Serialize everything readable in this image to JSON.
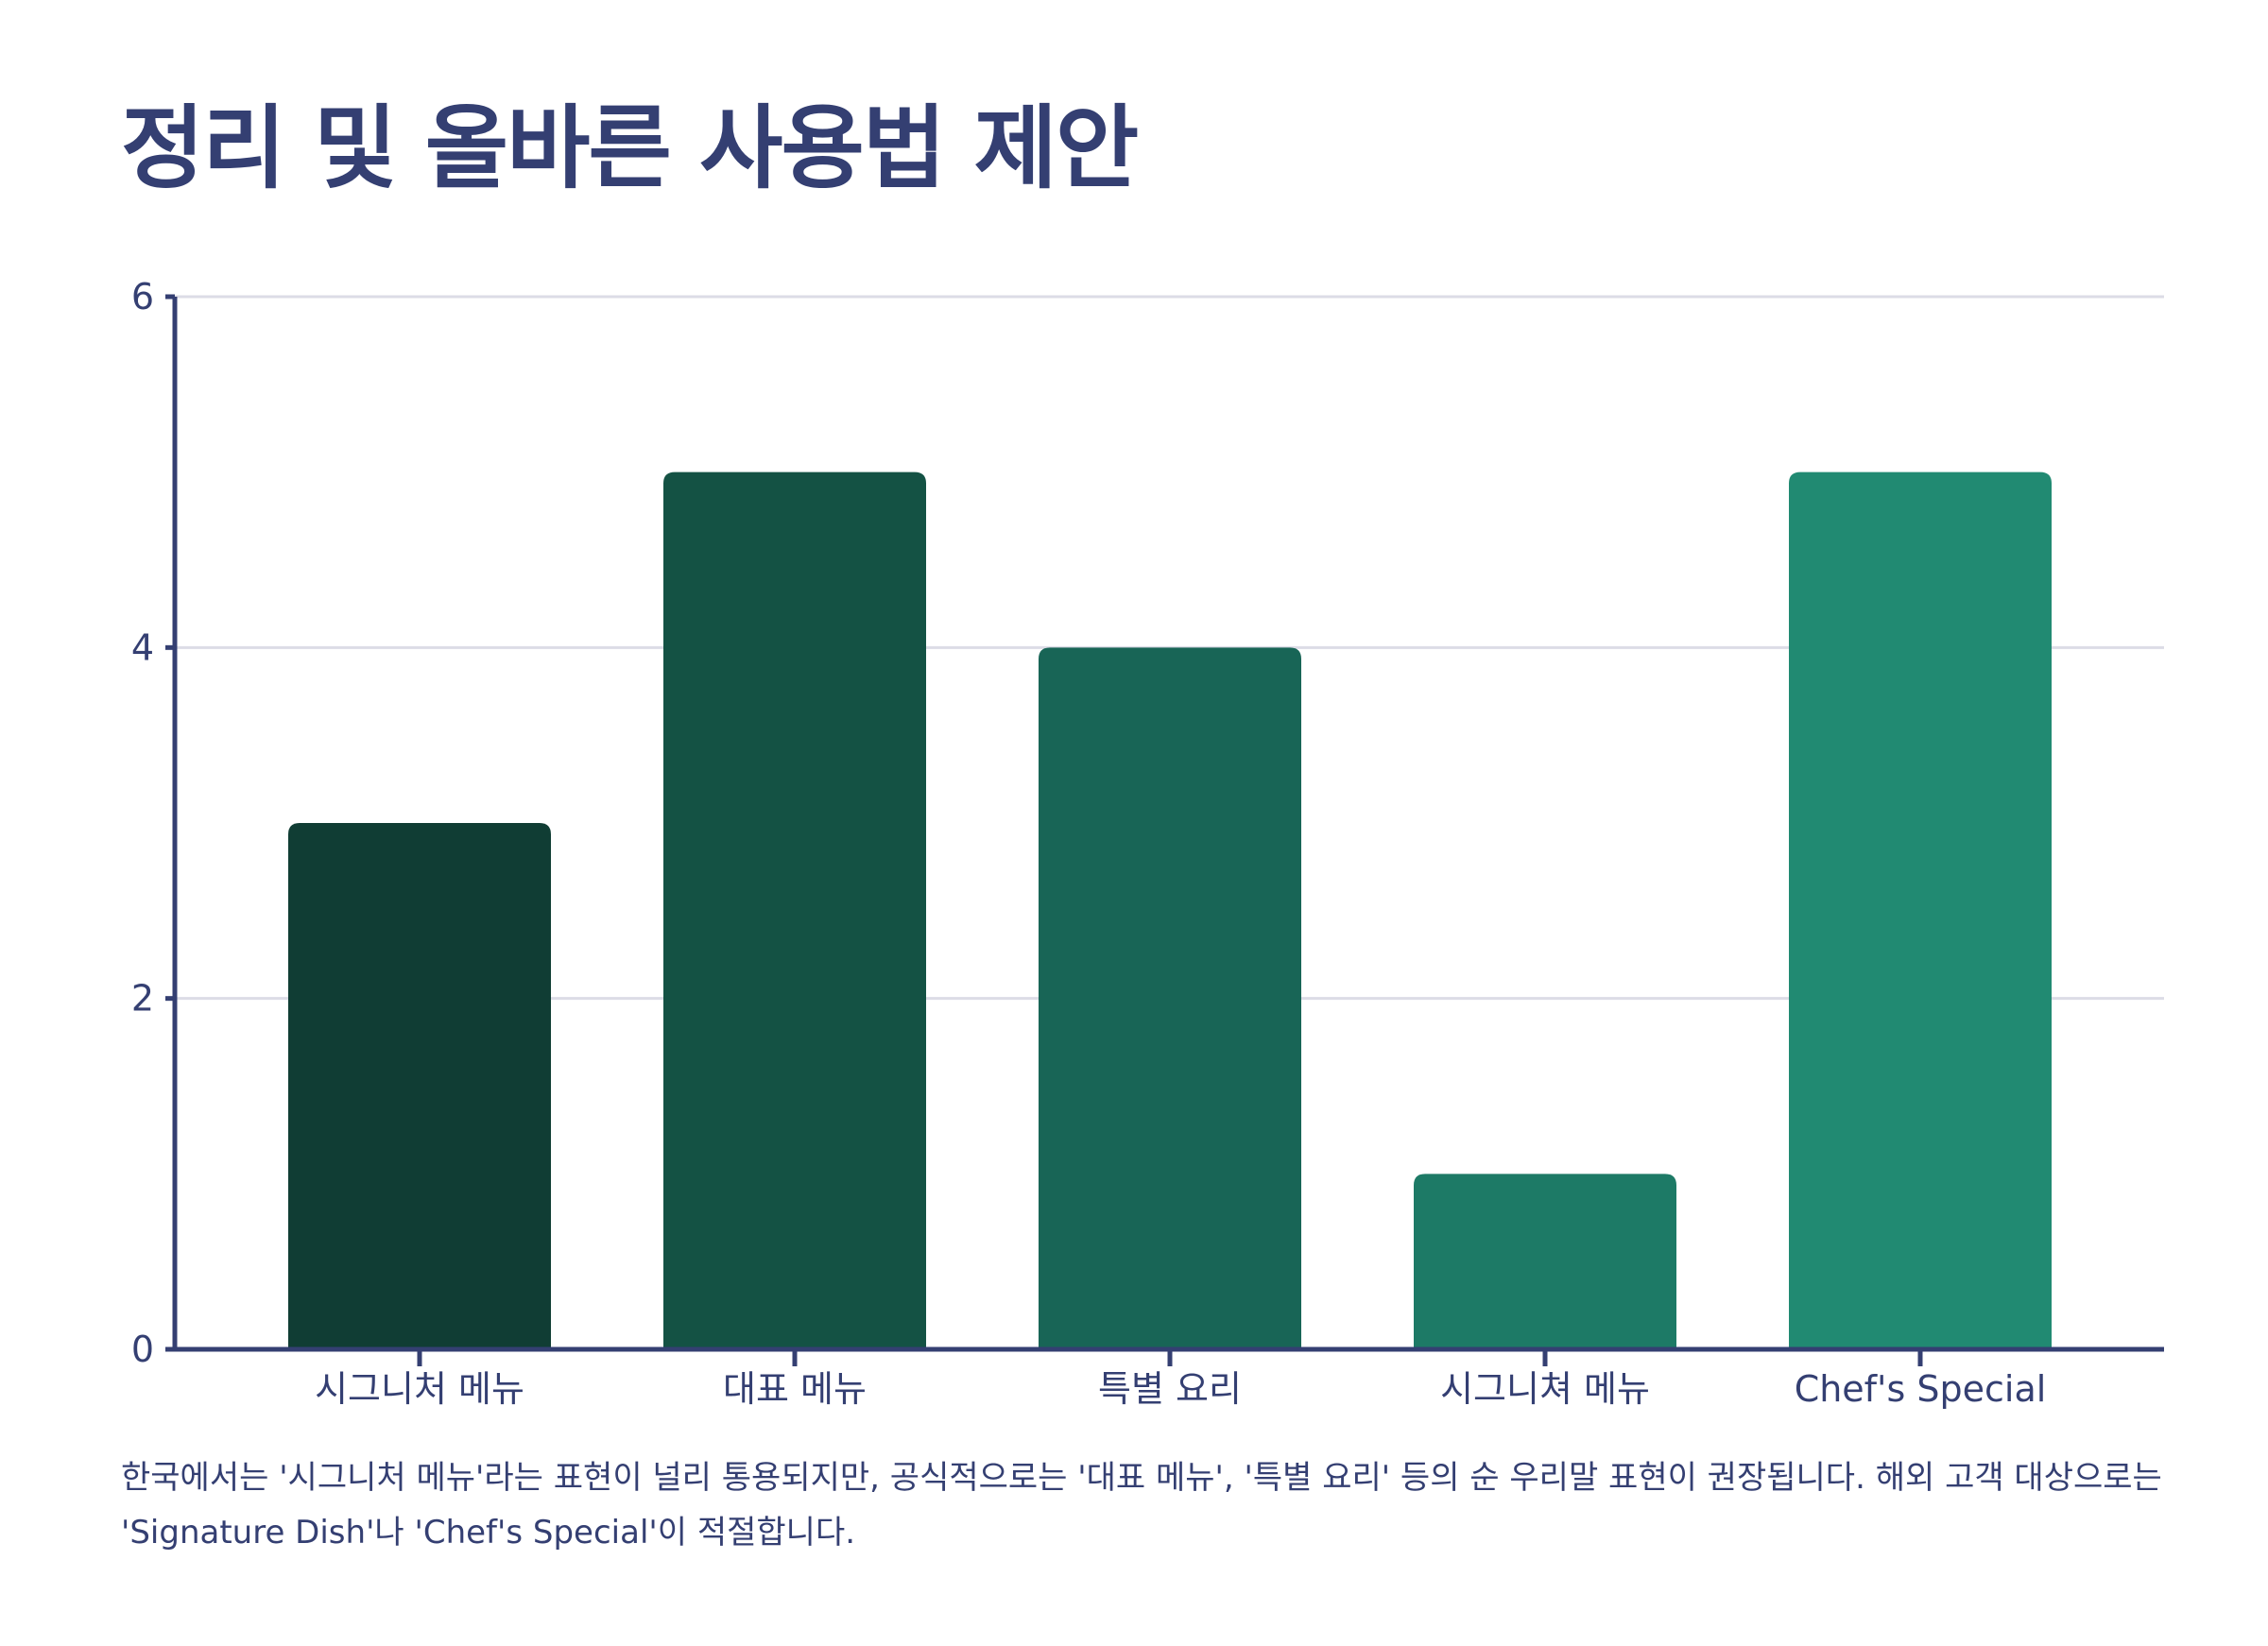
{
  "title": "정리 및 올바른 사용법 제안",
  "caption": "한국에서는 '시그니처 메뉴'라는 표현이 널리 통용되지만, 공식적으로는 '대표 메뉴', '특별 요리' 등의 순 우리말 표현이 권장됩니다. 해외 고객 대상으로는 'Signature Dish'나 'Chef's Special'이 적절합니다.",
  "chart_data": {
    "type": "bar",
    "categories": [
      "시그니처 메뉴",
      "대표 메뉴",
      "특별 요리",
      "시그니쳐 메뉴",
      "Chef's Special"
    ],
    "values": [
      3,
      5,
      4,
      1,
      5
    ],
    "ylim": [
      0,
      6
    ],
    "yticks": [
      0,
      2,
      4,
      6
    ],
    "grid": true,
    "legend": "none",
    "colors": [
      "#103d34",
      "#145244",
      "#186556",
      "#1d7a66",
      "#218a72"
    ],
    "axis_color": "#343f72",
    "grid_color": "#dcdce6"
  }
}
